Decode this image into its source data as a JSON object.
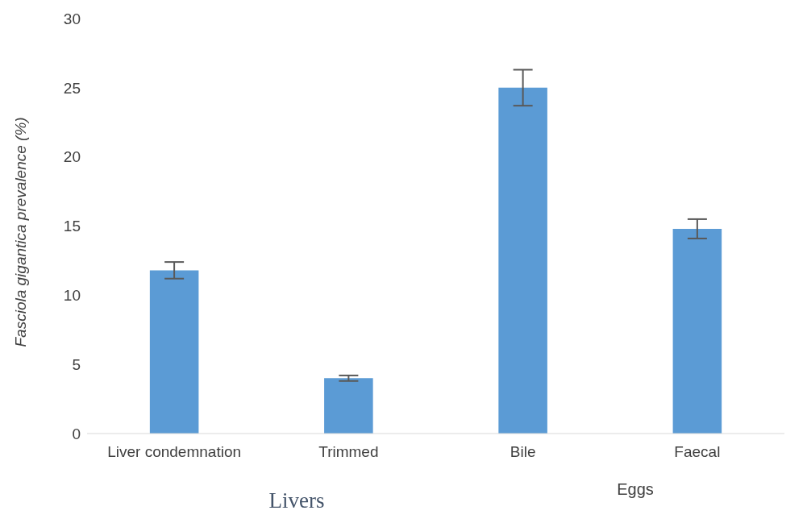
{
  "chart_data": {
    "type": "bar",
    "ylabel": "Fasciola gigantica prevalence (%)",
    "categories": [
      "Liver condemnation",
      "Trimmed",
      "Bile",
      "Faecal"
    ],
    "values": [
      11.8,
      4.0,
      25.0,
      14.8
    ],
    "errors": [
      0.6,
      0.2,
      1.3,
      0.7
    ],
    "color": "#5b9bd5",
    "ylim": [
      0,
      30
    ],
    "yticks": [
      0,
      5,
      10,
      15,
      20,
      25,
      30
    ],
    "grid": false,
    "legend": false,
    "annotations": [
      "Livers",
      "Eggs"
    ]
  }
}
